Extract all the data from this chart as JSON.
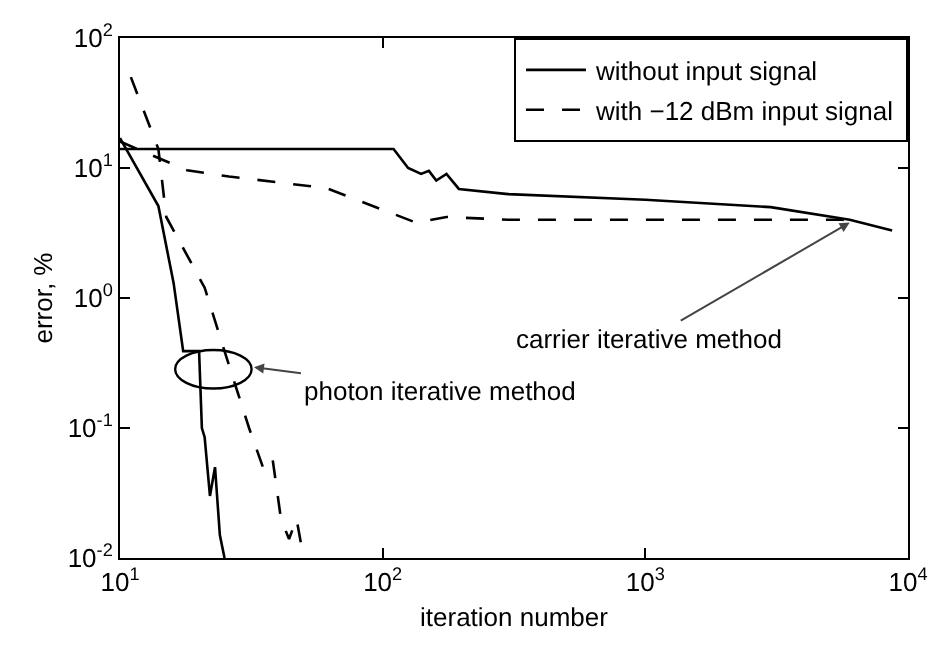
{
  "chart_data": {
    "type": "line",
    "xlabel": "iteration number",
    "ylabel": "error, %",
    "log": "xy",
    "grid": false,
    "legend": "top right",
    "marker": "none",
    "xlim": [
      10,
      10000
    ],
    "ylim": [
      0.01,
      100
    ],
    "xticks": [
      {
        "value": 10,
        "label": "10$^{1}$"
      },
      {
        "value": 100,
        "label": "10$^{2}$"
      },
      {
        "value": 1000,
        "label": "10$^{3}$"
      },
      {
        "value": 10000,
        "label": "10$^{4}$"
      }
    ],
    "yticks": [
      {
        "value": 0.01,
        "label": "10$^{-2}$"
      },
      {
        "value": 0.1,
        "label": "10$^{-1}$"
      },
      {
        "value": 1,
        "label": "10$^{0}$"
      },
      {
        "value": 10,
        "label": "10$^{1}$"
      },
      {
        "value": 100,
        "label": "10$^{2}$"
      }
    ],
    "series": [
      {
        "name": "without input signal",
        "color": "#000000",
        "line_style": "solid",
        "x": [
          10,
          50,
          110,
          125,
          140,
          150,
          160,
          175,
          195,
          300,
          1000,
          3000,
          6000,
          8700
        ],
        "values": [
          14,
          14,
          14,
          10,
          9,
          9.5,
          8,
          9,
          6.9,
          6.3,
          5.7,
          5.0,
          4.0,
          3.3
        ]
      },
      {
        "name": "with −12 dBm input signal",
        "color": "#000000",
        "line_style": "dashed",
        "x": [
          10,
          18,
          26,
          61,
          134,
          175,
          300,
          1000,
          3000,
          5600,
          6500
        ],
        "values": [
          16,
          9.6,
          8.6,
          7,
          3.8,
          4.2,
          4.0,
          4.0,
          4.0,
          4.0,
          3.8
        ]
      },
      {
        "color": "#000000",
        "line_style": "solid",
        "x": [
          10,
          14,
          16,
          17.4,
          20,
          20.5,
          21,
          22,
          23,
          24,
          25
        ],
        "values": [
          17,
          5.1,
          1.3,
          0.39,
          0.39,
          0.1,
          0.085,
          0.03,
          0.05,
          0.015,
          0.01
        ]
      },
      {
        "color": "#000000",
        "line_style": "dashed",
        "x": [
          11,
          14,
          15,
          21,
          25,
          28,
          31,
          35,
          38,
          41,
          44,
          47,
          50
        ],
        "values": [
          50,
          14,
          4.2,
          1.2,
          0.39,
          0.19,
          0.1,
          0.05,
          0.06,
          0.02,
          0.014,
          0.02,
          0.01
        ]
      }
    ],
    "annotations": [
      "photon iterative method",
      {
        "text": "carrier iterative method",
        "x": 6000,
        "y": 3.8
      }
    ]
  }
}
